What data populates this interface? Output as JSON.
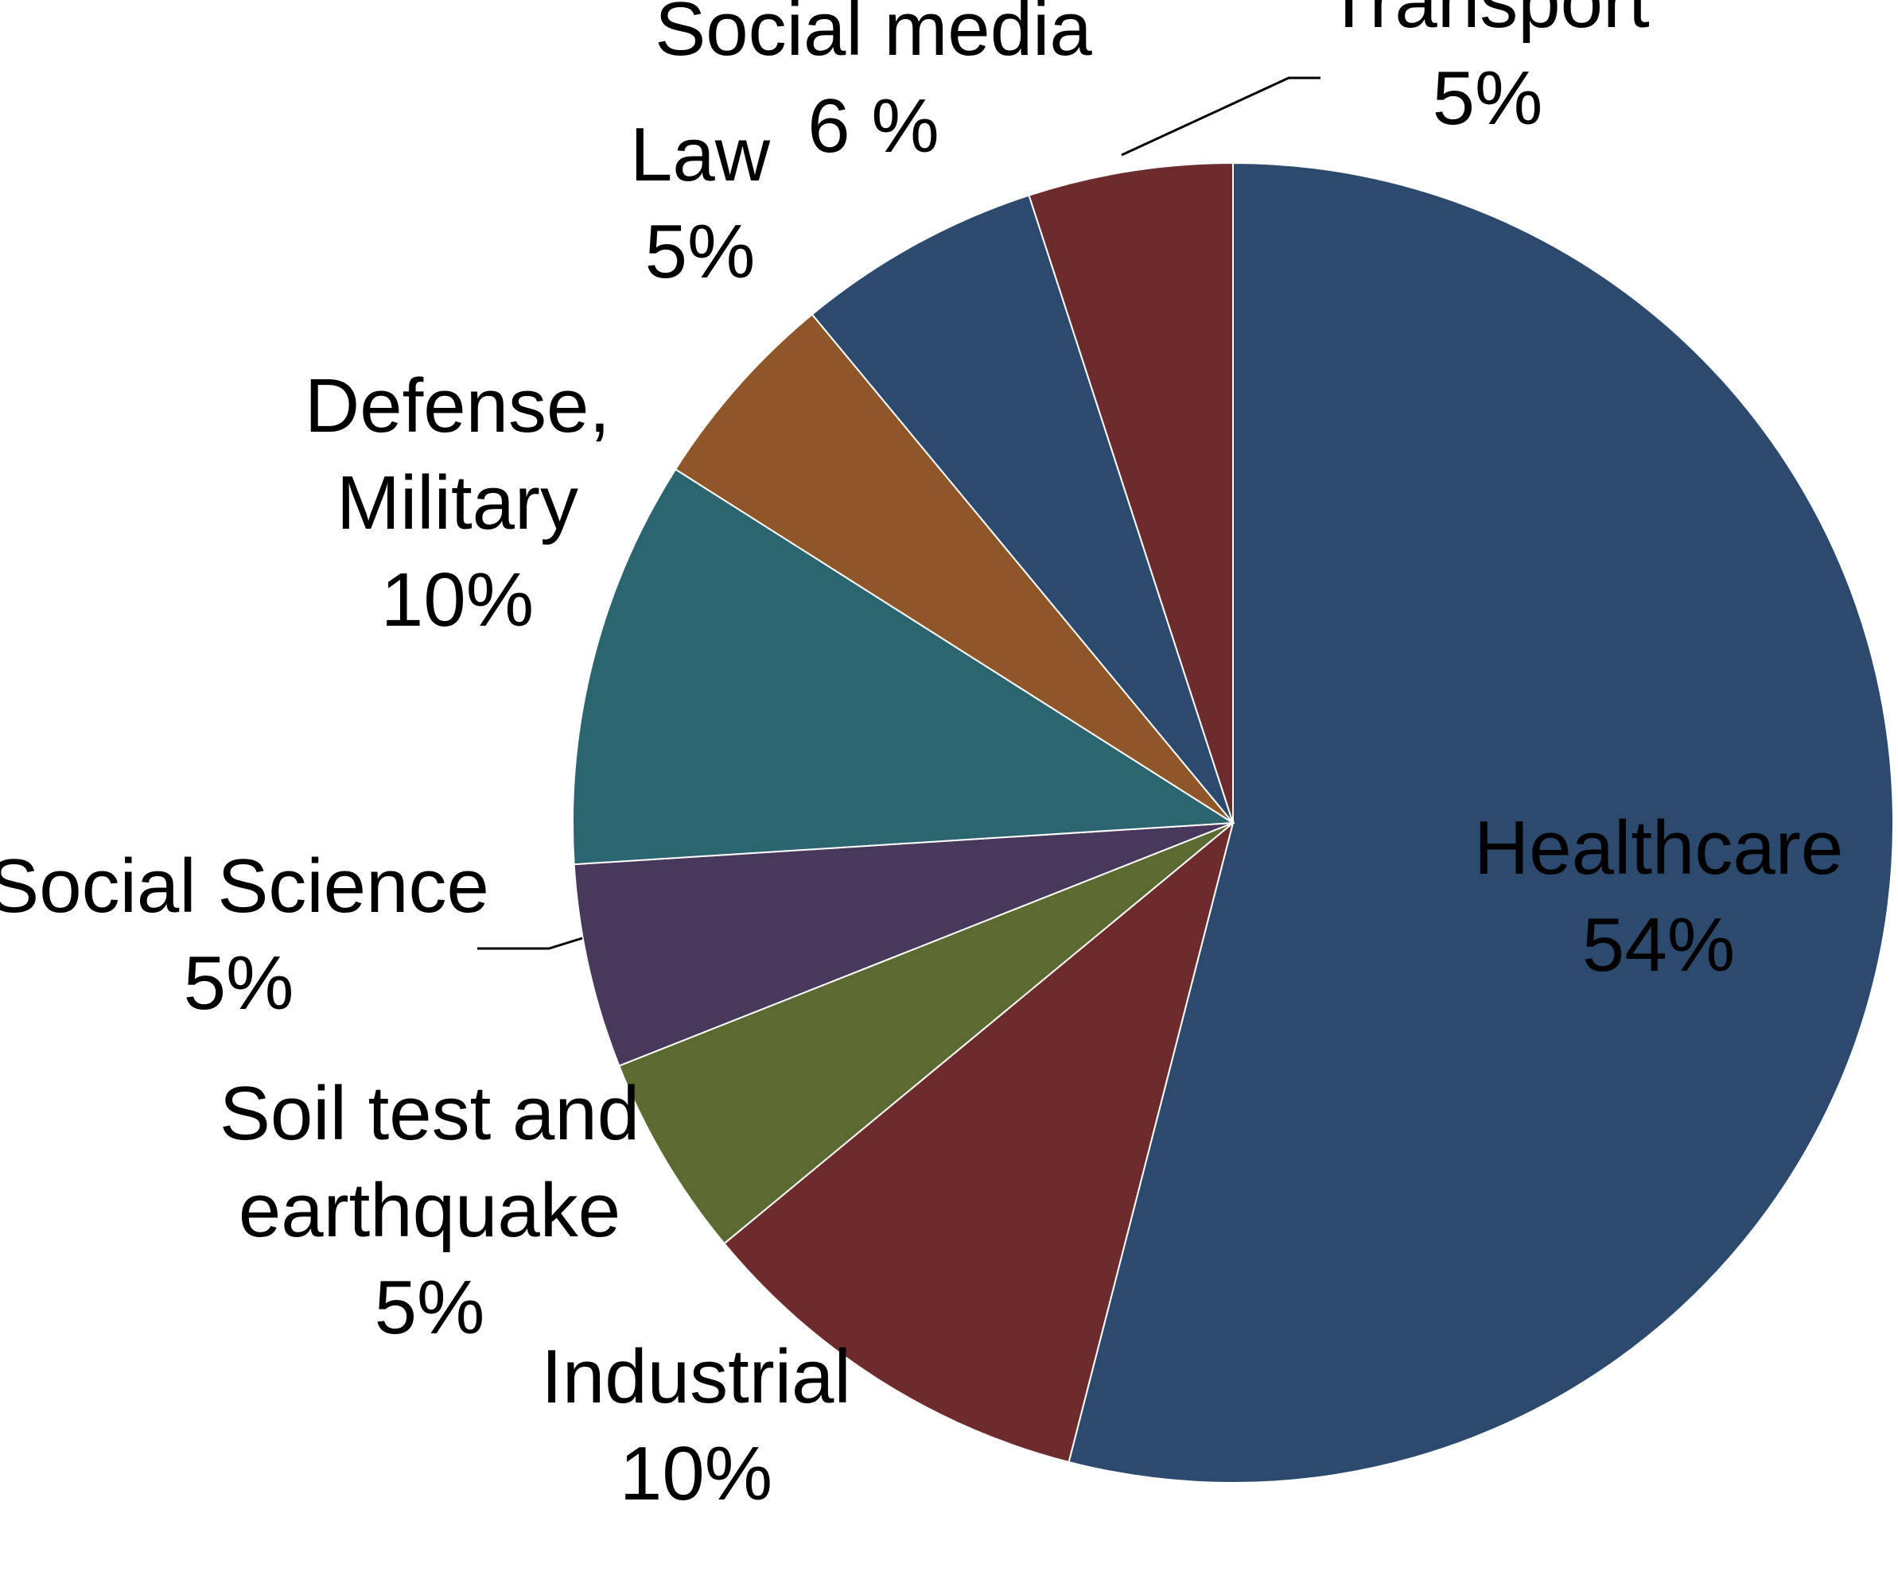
{
  "chart_data": {
    "type": "pie",
    "title": "",
    "start_angle_deg": 0,
    "direction": "clockwise",
    "slices": [
      {
        "name": "Healthcare",
        "value": 54,
        "value_label": "54%",
        "color": "#2c4a6e"
      },
      {
        "name": "Industrial",
        "value": 10,
        "value_label": "10%",
        "color": "#6e2b2d"
      },
      {
        "name": "Soil test and earthquake",
        "value": 5,
        "value_label": "5%",
        "color": "#5a6a31"
      },
      {
        "name": "Social Science",
        "value": 5,
        "value_label": "5%",
        "color": "#48385c"
      },
      {
        "name": "Defense, Military",
        "value": 10,
        "value_label": "10%",
        "color": "#2a6570"
      },
      {
        "name": "Law",
        "value": 5,
        "value_label": "5%",
        "color": "#8f5727"
      },
      {
        "name": "Social media",
        "value": 6,
        "value_label": "6 %",
        "color": "#2c4a6e"
      },
      {
        "name": "Transport",
        "value": 5,
        "value_label": "5%",
        "color": "#6e2b2d"
      }
    ]
  }
}
